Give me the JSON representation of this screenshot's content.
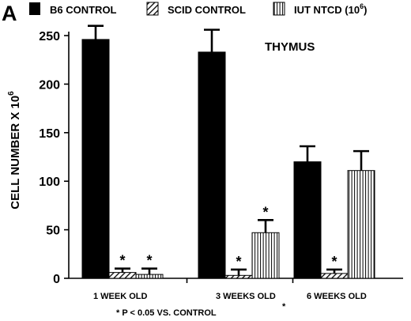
{
  "panel_label": "A",
  "chart_data": {
    "type": "bar",
    "title": "THYMUS",
    "ylabel": "CELL NUMBER X 10",
    "ylabel_exponent": "6",
    "ylim": [
      0,
      250
    ],
    "yticks": [
      0,
      50,
      100,
      150,
      200,
      250
    ],
    "categories": [
      "1 WEEK OLD",
      "3 WEEKS OLD",
      "6 WEEKS OLD"
    ],
    "category_marks": [
      "",
      "*",
      ""
    ],
    "grid": false,
    "legend_placement": "top",
    "series": [
      {
        "name": "B6 CONTROL",
        "name_exponent": "",
        "pattern": "solid",
        "color": "#000000",
        "values": [
          246,
          233,
          120
        ],
        "errors": [
          14,
          23,
          16
        ],
        "marks": [
          "",
          "",
          ""
        ]
      },
      {
        "name": "SCID CONTROL",
        "name_exponent": "",
        "pattern": "diagonal",
        "color": "#000000",
        "values": [
          6,
          3,
          5
        ],
        "errors": [
          4,
          6,
          4
        ],
        "marks": [
          "*",
          "*",
          "*"
        ]
      },
      {
        "name": "IUT NTCD (10",
        "name_exponent": "6",
        "name_suffix": ")",
        "pattern": "vertical",
        "color": "#000000",
        "values": [
          4,
          47,
          111
        ],
        "errors": [
          6,
          13,
          20
        ],
        "marks": [
          "*",
          "*",
          ""
        ]
      }
    ],
    "footnote": "* P < 0.05 VS. CONTROL"
  }
}
